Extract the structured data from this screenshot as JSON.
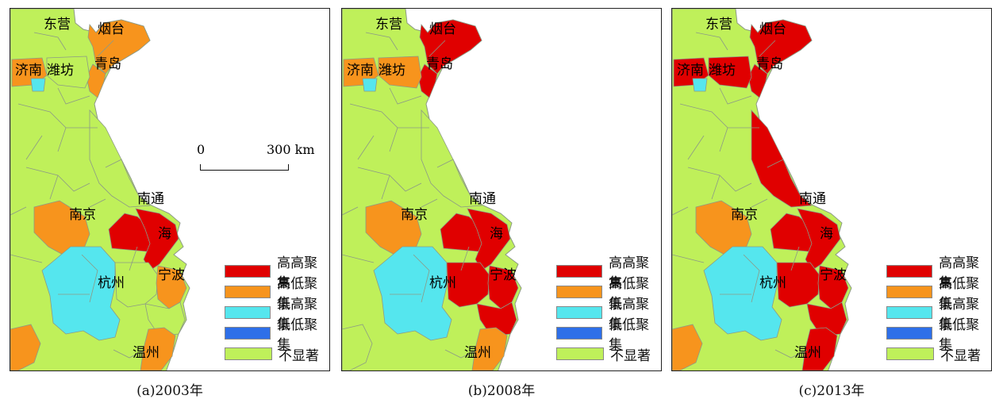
{
  "colors": {
    "hh": "#e00000",
    "hl": "#f7941d",
    "lh": "#55e6ee",
    "ll": "#2e6fe8",
    "ns": "#bff05a",
    "sea": "#ffffff",
    "border": "#8c9a86"
  },
  "legend": [
    {
      "key": "hh",
      "label": "高高聚集"
    },
    {
      "key": "hl",
      "label": "高低聚集"
    },
    {
      "key": "lh",
      "label": "低高聚集"
    },
    {
      "key": "ll",
      "label": "低低聚集"
    },
    {
      "key": "ns",
      "label": "不显著"
    }
  ],
  "scale_bar": {
    "start": "0",
    "end": "300 km"
  },
  "panels": [
    {
      "caption": "(a)2003年",
      "cities": {
        "dongying": "东营",
        "yantai": "烟台",
        "jinan": "济南",
        "weifang": "潍坊",
        "qingdao": "青岛",
        "nantong": "南通",
        "nanjing": "南京",
        "shanghai": "海",
        "hangzhou": "杭州",
        "ningbo": "宁波",
        "wenzhou": "温州"
      },
      "regions": {
        "shandong_ne": "hl",
        "qingdao": "hl",
        "jinan_w": "hl",
        "jinan_spot": "lh",
        "weifang": "ns",
        "nanjing": "hl",
        "shanghai_core": "hh",
        "suzhou": "hh",
        "zhejiang_w": "lh",
        "ningbo": "hl",
        "shaoxing": "ns",
        "south_coast": "ns",
        "wenzhou": "hl",
        "sw_corner": "hl",
        "jiangsu_n": "ns"
      }
    },
    {
      "caption": "(b)2008年",
      "cities": {
        "dongying": "东营",
        "yantai": "烟台",
        "jinan": "济南",
        "weifang": "潍坊",
        "qingdao": "青岛",
        "nantong": "南通",
        "nanjing": "南京",
        "shanghai": "海",
        "hangzhou": "杭州",
        "ningbo": "宁波",
        "wenzhou": "温州"
      },
      "regions": {
        "shandong_ne": "hh",
        "qingdao": "hh",
        "jinan_w": "hl",
        "jinan_spot": "lh",
        "weifang": "hl",
        "nanjing": "hl",
        "shanghai_core": "hh",
        "suzhou": "hh",
        "zhejiang_w": "lh",
        "ningbo": "hh",
        "shaoxing": "hh",
        "south_coast": "hh",
        "wenzhou": "hl",
        "sw_corner": "ns",
        "jiangsu_n": "ns"
      }
    },
    {
      "caption": "(c)2013年",
      "cities": {
        "dongying": "东营",
        "yantai": "烟台",
        "jinan": "济南",
        "weifang": "潍坊",
        "qingdao": "青岛",
        "nantong": "南通",
        "nanjing": "南京",
        "shanghai": "海",
        "hangzhou": "杭州",
        "ningbo": "宁波",
        "wenzhou": "温州"
      },
      "regions": {
        "shandong_ne": "hh",
        "qingdao": "hh",
        "jinan_w": "hh",
        "jinan_spot": "lh",
        "weifang": "hh",
        "nanjing": "hl",
        "shanghai_core": "hh",
        "suzhou": "hh",
        "zhejiang_w": "lh",
        "ningbo": "hh",
        "shaoxing": "hh",
        "south_coast": "hh",
        "wenzhou": "hh",
        "sw_corner": "hl",
        "jiangsu_n": "hh"
      }
    }
  ]
}
